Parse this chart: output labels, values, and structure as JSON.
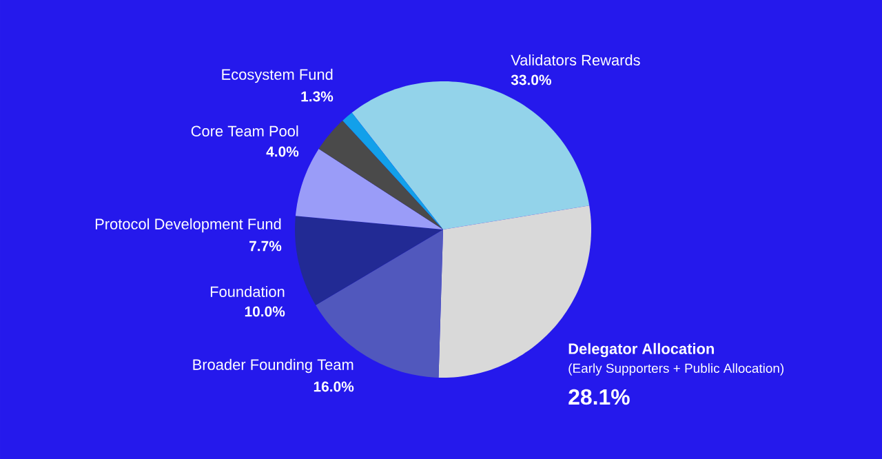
{
  "chart_data": {
    "type": "pie",
    "categories": [
      "Validators Rewards",
      "Delegator Allocation",
      "Broader Founding Team",
      "Foundation",
      "Protocol Development Fund",
      "Core Team Pool",
      "Ecosystem Fund"
    ],
    "values": [
      33.0,
      28.1,
      16.0,
      10.0,
      7.7,
      4.0,
      1.3
    ],
    "colors": [
      "#93d3ea",
      "#d9d9d9",
      "#5158bd",
      "#222a94",
      "#9a9cf8",
      "#4a4a4a",
      "#12a0ea"
    ],
    "value_labels": [
      "33.0%",
      "28.1%",
      "16.0%",
      "10.0%",
      "7.7%",
      "4.0%",
      "1.3%"
    ],
    "annotations": [
      "(Early Supporters + Public Allocation)"
    ]
  }
}
